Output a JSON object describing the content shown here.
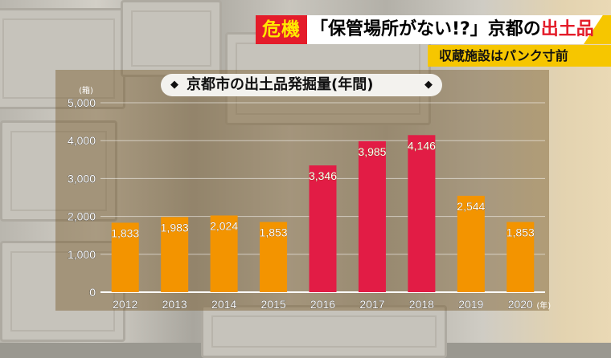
{
  "banner": {
    "crisis": "危機",
    "headline_part1": "「保管場所がない!?」京都の",
    "headline_part2": "出土品",
    "subheadline": "収蔵施設はパンク寸前"
  },
  "colors": {
    "orange": "#f39400",
    "red": "#e21c45",
    "banner_red": "#e41c2a",
    "banner_yellow": "#f6c600"
  },
  "chart_data": {
    "type": "bar",
    "title": "京都市の出土品発掘量(年間)",
    "y_unit": "(箱)",
    "x_unit": "(年)",
    "categories": [
      "2012",
      "2013",
      "2014",
      "2015",
      "2016",
      "2017",
      "2018",
      "2019",
      "2020"
    ],
    "values": [
      1833,
      1983,
      2024,
      1853,
      3346,
      3985,
      4146,
      2544,
      1853
    ],
    "value_labels": [
      "1,833",
      "1,983",
      "2,024",
      "1,853",
      "3,346",
      "3,985",
      "4,146",
      "2,544",
      "1,853"
    ],
    "highlight": [
      false,
      false,
      false,
      false,
      true,
      true,
      true,
      false,
      false
    ],
    "ylim": [
      0,
      5000
    ],
    "yticks": [
      0,
      1000,
      2000,
      3000,
      4000,
      5000
    ],
    "ytick_labels": [
      "0",
      "1,000",
      "2,000",
      "3,000",
      "4,000",
      "5,000"
    ]
  }
}
